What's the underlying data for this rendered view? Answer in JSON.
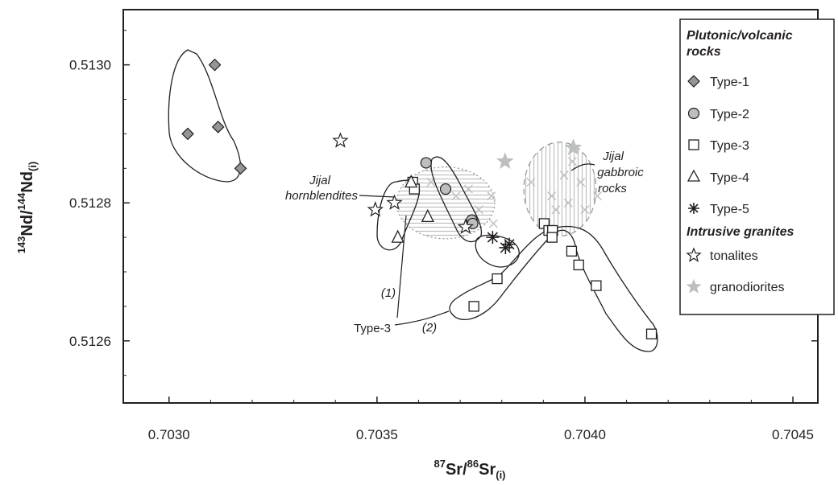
{
  "chart_data": {
    "type": "scatter",
    "xlabel": {
      "pre": "87",
      "base": "Sr/",
      "pre2": "86",
      "base2": "Sr",
      "sub": "(i)"
    },
    "ylabel": {
      "pre": "143",
      "base": "Nd/",
      "pre2": "144",
      "base2": "Nd",
      "sub": "(i)"
    },
    "xlim": [
      0.70289,
      0.70456
    ],
    "ylim": [
      0.51251,
      0.51308
    ],
    "xticks": [
      0.703,
      0.7035,
      0.704,
      0.7045
    ],
    "xtick_labels": [
      "0.7030",
      "0.7035",
      "0.7040",
      "0.7045"
    ],
    "yticks": [
      0.5126,
      0.5128,
      0.513
    ],
    "ytick_labels": [
      "0.5126",
      "0.5128",
      "0.5130"
    ],
    "legend": {
      "position": "top-right",
      "head1": "Plutonic/volcanic",
      "head1b": "rocks",
      "items1": [
        "Type-1",
        "Type-2",
        "Type-3",
        "Type-4",
        "Type-5"
      ],
      "head2": "Intrusive granites",
      "items2": [
        "tonalites",
        "granodiorites"
      ]
    },
    "annotations": {
      "hornblendites_1": "Jijal",
      "hornblendites_2": "hornblendites",
      "gabbroic_1": "Jijal",
      "gabbroic_2": "gabbroic",
      "gabbroic_3": "rocks",
      "group_label": "Type-3",
      "group_1": "(1)",
      "group_2": "(2)"
    },
    "series": [
      {
        "name": "Type-1",
        "marker": "diamond",
        "color": "#939598",
        "points": [
          [
            0.703045,
            0.5129
          ],
          [
            0.70311,
            0.513
          ],
          [
            0.703118,
            0.51291
          ],
          [
            0.703172,
            0.51285
          ]
        ]
      },
      {
        "name": "Type-2",
        "marker": "circle",
        "color": "#bcbec0",
        "points": [
          [
            0.703618,
            0.512858
          ],
          [
            0.703665,
            0.51282
          ],
          [
            0.703728,
            0.512775
          ],
          [
            0.70373,
            0.51277
          ]
        ]
      },
      {
        "name": "Type-3",
        "marker": "square",
        "color": "#ffffff",
        "points": [
          [
            0.703586,
            0.51283
          ],
          [
            0.70359,
            0.51282
          ],
          [
            0.703733,
            0.51265
          ],
          [
            0.703789,
            0.51269
          ],
          [
            0.703902,
            0.51277
          ],
          [
            0.703913,
            0.51276
          ],
          [
            0.703922,
            0.51276
          ],
          [
            0.703921,
            0.51275
          ],
          [
            0.703968,
            0.51273
          ],
          [
            0.703985,
            0.51271
          ],
          [
            0.704027,
            0.51268
          ],
          [
            0.70416,
            0.51261
          ]
        ]
      },
      {
        "name": "Type-4",
        "marker": "triangle",
        "color": "#ffffff",
        "points": [
          [
            0.70355,
            0.51275
          ],
          [
            0.703622,
            0.51278
          ],
          [
            0.703582,
            0.51283
          ]
        ]
      },
      {
        "name": "Type-5",
        "marker": "asterisk",
        "color": "#231f20",
        "points": [
          [
            0.703778,
            0.51275
          ],
          [
            0.703809,
            0.512735
          ],
          [
            0.703818,
            0.51274
          ]
        ]
      },
      {
        "name": "tonalites",
        "marker": "star-open",
        "color": "#ffffff",
        "points": [
          [
            0.703412,
            0.51289
          ],
          [
            0.703496,
            0.51279
          ],
          [
            0.703542,
            0.5128
          ],
          [
            0.703713,
            0.512765
          ]
        ]
      },
      {
        "name": "granodiorites",
        "marker": "star-filled",
        "color": "#bcbec0",
        "points": [
          [
            0.703808,
            0.51286
          ],
          [
            0.703972,
            0.51288
          ]
        ]
      }
    ],
    "regions": [
      {
        "name": "Jijal hornblendites",
        "style": "dotted-hatched",
        "color": "#bcbec0",
        "ellipse": {
          "cx": 0.703665,
          "cy": 0.5128,
          "rx": 0.000118,
          "ry": 5.2e-05
        }
      },
      {
        "name": "Jijal gabbroic rocks",
        "style": "dashed-hatched",
        "color": "#bcbec0",
        "ellipse": {
          "cx": 0.70394,
          "cy": 0.51282,
          "rx": 8.7e-05,
          "ry": 6.8e-05
        }
      }
    ],
    "grid": false
  }
}
